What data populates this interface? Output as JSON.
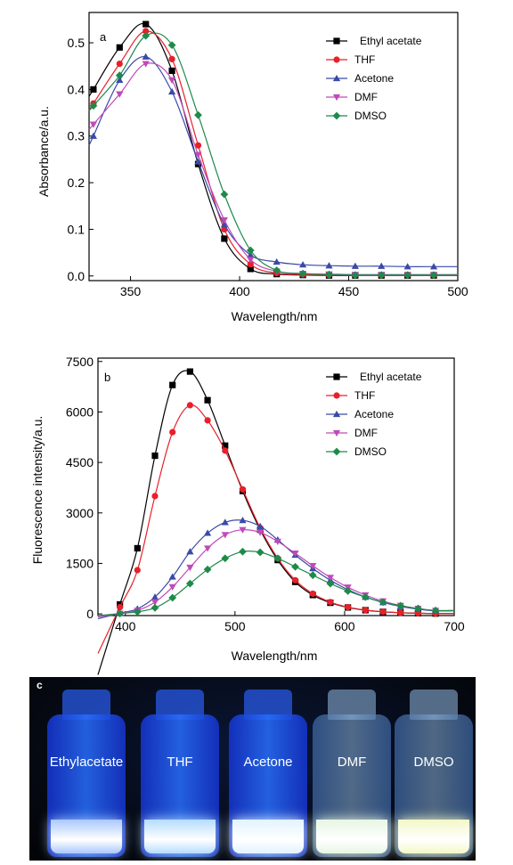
{
  "panels": {
    "a_letter": "a",
    "b_letter": "b",
    "c_letter": "c"
  },
  "colors": {
    "Ethyl acetate": "#000000",
    "THF": "#e8202a",
    "Acetone": "#3a4aa8",
    "DMF": "#c04ab8",
    "DMSO": "#1e8a4a"
  },
  "chart_data": [
    {
      "type": "line",
      "panel": "a",
      "xlabel": "Wavelength/nm",
      "ylabel": "Absorbance/a.u.",
      "xlim": [
        331,
        500
      ],
      "ylim": [
        -0.01,
        0.565
      ],
      "xticks": [
        350,
        400,
        450,
        500
      ],
      "yticks": [
        0.0,
        0.1,
        0.2,
        0.3,
        0.4,
        0.5
      ],
      "ytick_labels": [
        "0.0",
        "0.1",
        "0.2",
        "0.3",
        "0.4",
        "0.5"
      ],
      "legend_position": "top-right",
      "series": [
        {
          "name": "Ethyl acetate",
          "marker": "square",
          "x": [
            333,
            345,
            357,
            369,
            381,
            393,
            405,
            417,
            429,
            441,
            453,
            465,
            477,
            489
          ],
          "y": [
            0.4,
            0.49,
            0.54,
            0.44,
            0.24,
            0.08,
            0.015,
            0.004,
            0.002,
            0.001,
            0.001,
            0.001,
            0.001,
            0.001
          ]
        },
        {
          "name": "THF",
          "marker": "circle",
          "x": [
            333,
            345,
            357,
            369,
            381,
            393,
            405,
            417,
            429,
            441,
            453,
            465,
            477,
            489
          ],
          "y": [
            0.37,
            0.455,
            0.525,
            0.465,
            0.28,
            0.1,
            0.025,
            0.006,
            0.003,
            0.002,
            0.002,
            0.002,
            0.002,
            0.002
          ]
        },
        {
          "name": "Acetone",
          "marker": "triangle-up",
          "x": [
            333,
            345,
            357,
            369,
            381,
            393,
            405,
            417,
            429,
            441,
            453,
            465,
            477,
            489
          ],
          "y": [
            0.3,
            0.42,
            0.47,
            0.395,
            0.245,
            0.11,
            0.045,
            0.03,
            0.024,
            0.022,
            0.021,
            0.021,
            0.02,
            0.02
          ]
        },
        {
          "name": "DMF",
          "marker": "triangle-down",
          "x": [
            333,
            345,
            357,
            369,
            381,
            393,
            405,
            417,
            429,
            441,
            453,
            465,
            477,
            489
          ],
          "y": [
            0.325,
            0.39,
            0.455,
            0.42,
            0.26,
            0.12,
            0.035,
            0.01,
            0.005,
            0.004,
            0.003,
            0.003,
            0.003,
            0.003
          ]
        },
        {
          "name": "DMSO",
          "marker": "diamond",
          "x": [
            333,
            345,
            357,
            369,
            381,
            393,
            405,
            417,
            429,
            441,
            453,
            465,
            477,
            489
          ],
          "y": [
            0.365,
            0.43,
            0.515,
            0.495,
            0.345,
            0.175,
            0.055,
            0.012,
            0.005,
            0.003,
            0.002,
            0.002,
            0.002,
            0.002
          ]
        }
      ]
    },
    {
      "type": "line",
      "panel": "b",
      "xlabel": "Wavelength/nm",
      "ylabel": "Fluorescence intensity/a.u.",
      "xlim": [
        375,
        700
      ],
      "ylim": [
        -50,
        7600
      ],
      "xticks": [
        400,
        500,
        600,
        700
      ],
      "yticks": [
        0,
        1500,
        3000,
        4500,
        6000,
        7500
      ],
      "ytick_labels": [
        "0",
        "1500",
        "3000",
        "4500",
        "6000",
        "7500"
      ],
      "legend_position": "top-right",
      "series": [
        {
          "name": "Ethyl acetate",
          "marker": "square",
          "x": [
            395,
            411,
            427,
            443,
            459,
            475,
            491,
            507,
            523,
            539,
            555,
            571,
            587,
            603,
            619,
            635,
            651,
            667,
            683
          ],
          "y": [
            280,
            1950,
            4700,
            6800,
            7200,
            6350,
            5000,
            3650,
            2500,
            1600,
            950,
            560,
            330,
            190,
            110,
            60,
            35,
            20,
            10
          ]
        },
        {
          "name": "THF",
          "marker": "circle",
          "x": [
            395,
            411,
            427,
            443,
            459,
            475,
            491,
            507,
            523,
            539,
            555,
            571,
            587,
            603,
            619,
            635,
            651,
            667,
            683
          ],
          "y": [
            200,
            1300,
            3500,
            5400,
            6200,
            5750,
            4850,
            3700,
            2550,
            1650,
            1000,
            600,
            350,
            200,
            115,
            65,
            35,
            20,
            10
          ]
        },
        {
          "name": "Acetone",
          "marker": "triangle-up",
          "x": [
            395,
            411,
            427,
            443,
            459,
            475,
            491,
            507,
            523,
            539,
            555,
            571,
            587,
            603,
            619,
            635,
            651,
            667,
            683
          ],
          "y": [
            20,
            150,
            500,
            1100,
            1850,
            2400,
            2720,
            2780,
            2600,
            2200,
            1750,
            1350,
            1000,
            720,
            500,
            340,
            220,
            140,
            90
          ]
        },
        {
          "name": "DMF",
          "marker": "triangle-down",
          "x": [
            395,
            411,
            427,
            443,
            459,
            475,
            491,
            507,
            523,
            539,
            555,
            571,
            587,
            603,
            619,
            635,
            651,
            667,
            683
          ],
          "y": [
            15,
            100,
            350,
            800,
            1380,
            1950,
            2350,
            2500,
            2420,
            2150,
            1800,
            1430,
            1080,
            790,
            560,
            380,
            250,
            160,
            100
          ]
        },
        {
          "name": "DMSO",
          "marker": "diamond",
          "x": [
            395,
            411,
            427,
            443,
            459,
            475,
            491,
            507,
            523,
            539,
            555,
            571,
            587,
            603,
            619,
            635,
            651,
            667,
            683
          ],
          "y": [
            10,
            60,
            180,
            480,
            900,
            1320,
            1650,
            1850,
            1830,
            1650,
            1400,
            1150,
            900,
            680,
            500,
            350,
            240,
            160,
            100
          ]
        }
      ]
    }
  ],
  "vials": [
    {
      "label": "Ethylacetate",
      "liquid": "#a9c8ff"
    },
    {
      "label": "THF",
      "liquid": "#b5dcff"
    },
    {
      "label": "Acetone",
      "liquid": "#e2f3ff"
    },
    {
      "label": "DMF",
      "liquid": "#e7f6e4"
    },
    {
      "label": "DMSO",
      "liquid": "#f3f8c6"
    }
  ]
}
